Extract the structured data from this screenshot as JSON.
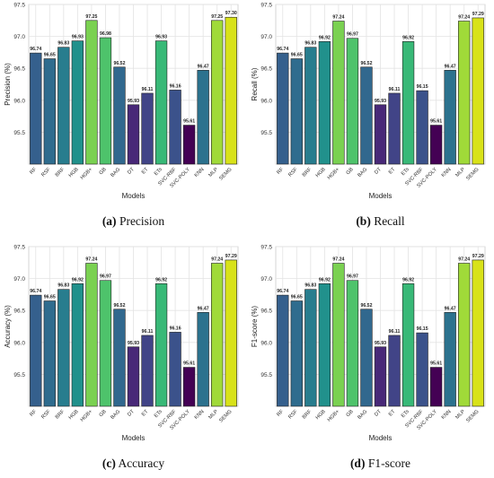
{
  "colors": {
    "RF": "#35608d",
    "RSF": "#2f6c8e",
    "BRF": "#287d8e",
    "HGB": "#21918c",
    "HGB+": "#7ad151",
    "GB": "#4ec36b",
    "BAG": "#31688e",
    "DT": "#482878",
    "ET": "#414487",
    "ETs": "#38b977",
    "SVC-RBF": "#3b528b",
    "SVC-POLY": "#440154",
    "KNN": "#2c728e",
    "MLP": "#a0da39",
    "SEMG": "#d8e219"
  },
  "chart_data": [
    {
      "type": "bar",
      "panel_label": "(a)",
      "caption": "Precision",
      "xlabel": "Models",
      "ylabel": "Precision (%)",
      "ylim": [
        95.0,
        97.5
      ],
      "yticks": [
        "95.5",
        "96.0",
        "96.5",
        "97.0",
        "97.5"
      ],
      "grid": true,
      "categories": [
        "RF",
        "RSF",
        "BRF",
        "HGB",
        "HGB+",
        "GB",
        "BAG",
        "DT",
        "ET",
        "ETs",
        "SVC-RBF",
        "SVC-POLY",
        "KNN",
        "MLP",
        "SEMG"
      ],
      "values": [
        96.74,
        96.65,
        96.83,
        96.93,
        97.25,
        96.98,
        96.52,
        95.93,
        96.11,
        96.93,
        96.16,
        95.61,
        96.47,
        97.25,
        97.3
      ],
      "value_labels": [
        "96.74",
        "96.65",
        "96.83",
        "96.93",
        "97.25",
        "96.98",
        "96.52",
        "95.93",
        "96.11",
        "96.93",
        "96.16",
        "95.61",
        "96.47",
        "97.25",
        "97.30"
      ]
    },
    {
      "type": "bar",
      "panel_label": "(b)",
      "caption": "Recall",
      "xlabel": "Models",
      "ylabel": "Recall (%)",
      "ylim": [
        95.0,
        97.5
      ],
      "yticks": [
        "95.5",
        "96.0",
        "96.5",
        "97.0",
        "97.5"
      ],
      "grid": true,
      "categories": [
        "RF",
        "RSF",
        "BRF",
        "HGB",
        "HGB+",
        "GB",
        "BAG",
        "DT",
        "ET",
        "ETs",
        "SVC-RBF",
        "SVC-POLY",
        "KNN",
        "MLP",
        "SEMG"
      ],
      "values": [
        96.74,
        96.65,
        96.83,
        96.92,
        97.24,
        96.97,
        96.52,
        95.93,
        96.11,
        96.92,
        96.15,
        95.61,
        96.47,
        97.24,
        97.29
      ],
      "value_labels": [
        "96.74",
        "96.65",
        "96.83",
        "96.92",
        "97.24",
        "96.97",
        "96.52",
        "95.93",
        "96.11",
        "96.92",
        "96.15",
        "95.61",
        "96.47",
        "97.24",
        "97.29"
      ]
    },
    {
      "type": "bar",
      "panel_label": "(c)",
      "caption": "Accuracy",
      "xlabel": "Models",
      "ylabel": "Accuracy (%)",
      "ylim": [
        95.0,
        97.5
      ],
      "yticks": [
        "95.5",
        "96.0",
        "96.5",
        "97.0",
        "97.5"
      ],
      "grid": true,
      "categories": [
        "RF",
        "RSF",
        "BRF",
        "HGB",
        "HGB+",
        "GB",
        "BAG",
        "DT",
        "ET",
        "ETs",
        "SVC-RBF",
        "SVC-POLY",
        "KNN",
        "MLP",
        "SEMG"
      ],
      "values": [
        96.74,
        96.65,
        96.83,
        96.92,
        97.24,
        96.97,
        96.52,
        95.93,
        96.11,
        96.92,
        96.16,
        95.61,
        96.47,
        97.24,
        97.29
      ],
      "value_labels": [
        "96.74",
        "96.65",
        "96.83",
        "96.92",
        "97.24",
        "96.97",
        "96.52",
        "95.93",
        "96.11",
        "96.92",
        "96.16",
        "95.61",
        "96.47",
        "97.24",
        "97.29"
      ]
    },
    {
      "type": "bar",
      "panel_label": "(d)",
      "caption": "F1-score",
      "xlabel": "Models",
      "ylabel": "F1-score (%)",
      "ylim": [
        95.0,
        97.5
      ],
      "yticks": [
        "95.5",
        "96.0",
        "96.5",
        "97.0",
        "97.5"
      ],
      "grid": true,
      "categories": [
        "RF",
        "RSF",
        "BRF",
        "HGB",
        "HGB+",
        "GB",
        "BAG",
        "DT",
        "ET",
        "ETs",
        "SVC-RBF",
        "SVC-POLY",
        "KNN",
        "MLP",
        "SEMG"
      ],
      "values": [
        96.74,
        96.65,
        96.83,
        96.92,
        97.24,
        96.97,
        96.52,
        95.93,
        96.11,
        96.92,
        96.15,
        95.61,
        96.47,
        97.24,
        97.29
      ],
      "value_labels": [
        "96.74",
        "96.65",
        "96.83",
        "96.92",
        "97.24",
        "96.97",
        "96.52",
        "95.93",
        "96.11",
        "96.92",
        "96.15",
        "95.61",
        "96.47",
        "97.24",
        "97.29"
      ]
    }
  ]
}
